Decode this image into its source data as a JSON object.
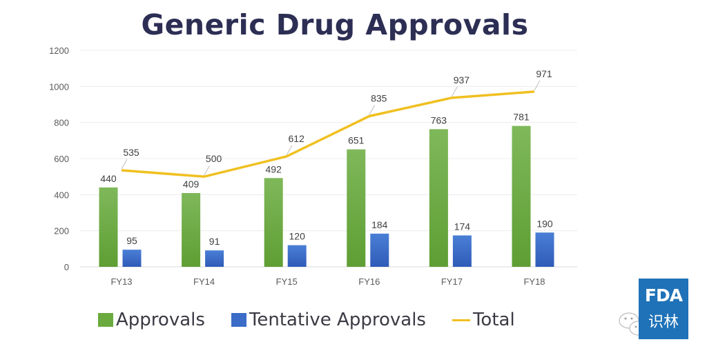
{
  "chart_data": {
    "type": "bar",
    "title": "Generic Drug Approvals",
    "xlabel": "",
    "ylabel": "",
    "categories": [
      "FY13",
      "FY14",
      "FY15",
      "FY16",
      "FY17",
      "FY18"
    ],
    "ylim": [
      0,
      1200
    ],
    "yticks": [
      0,
      200,
      400,
      600,
      800,
      1000,
      1200
    ],
    "grid": true,
    "legend_position": "bottom",
    "series": [
      {
        "name": "Approvals",
        "type": "bar",
        "color": "#6aaa3f",
        "values": [
          440,
          409,
          492,
          651,
          763,
          781
        ]
      },
      {
        "name": "Tentative Approvals",
        "type": "bar",
        "color": "#3b6cc8",
        "values": [
          95,
          91,
          120,
          184,
          174,
          190
        ]
      },
      {
        "name": "Total",
        "type": "line",
        "color": "#f0c020",
        "values": [
          535,
          500,
          612,
          835,
          937,
          971
        ]
      }
    ]
  },
  "watermark": {
    "logo_text": "FDA",
    "logo_subtext": "识林",
    "logo_color": "#1f72b8"
  }
}
